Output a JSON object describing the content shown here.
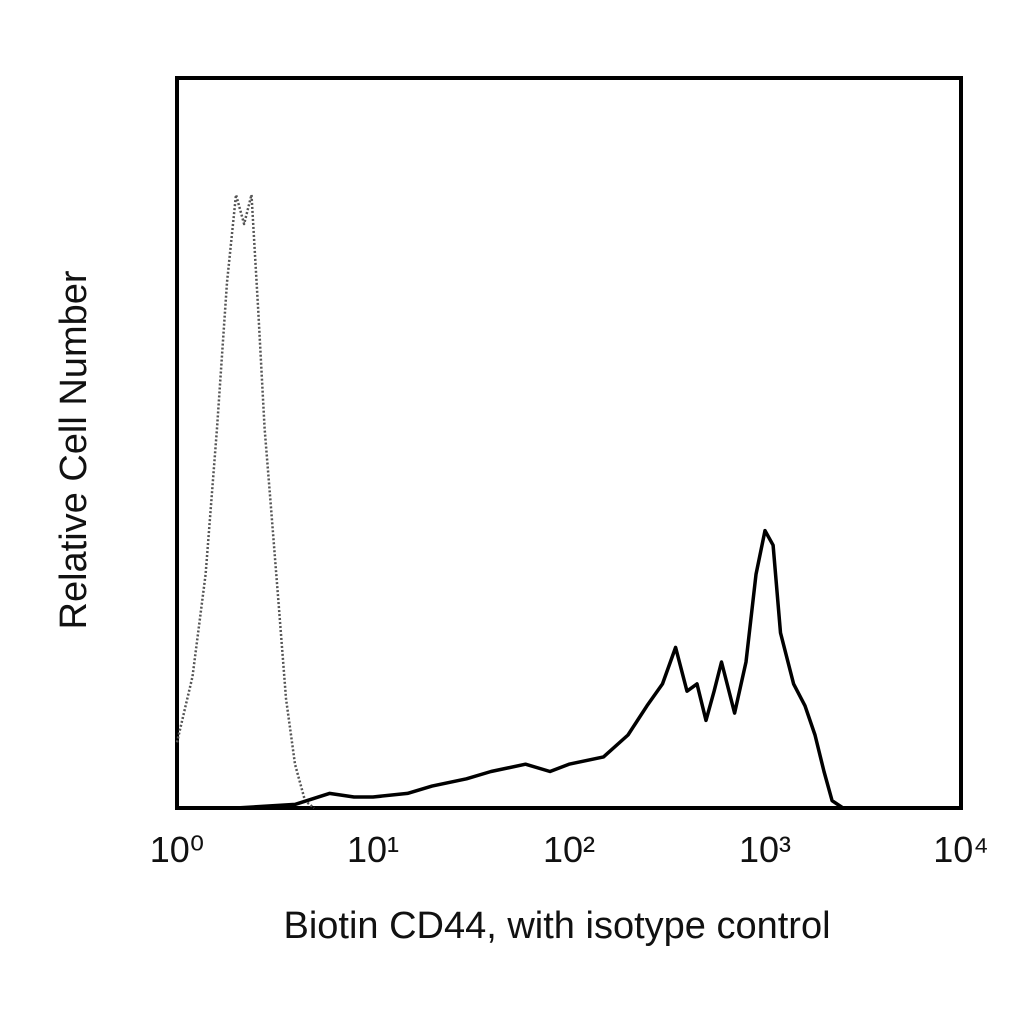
{
  "chart_data": {
    "type": "line",
    "x_label": "Biotin CD44, with isotype control",
    "y_label": "Relative Cell Number",
    "xscale": "log",
    "xlim": [
      1,
      10000
    ],
    "xticks": [
      {
        "value": 1,
        "label": "10⁰"
      },
      {
        "value": 10,
        "label": "10¹"
      },
      {
        "value": 100,
        "label": "10²"
      },
      {
        "value": 1000,
        "label": "10³"
      },
      {
        "value": 10000,
        "label": "10⁴"
      }
    ],
    "ylim": [
      0,
      100
    ],
    "grid": false,
    "series": [
      {
        "color": "#555555",
        "style": "dotted",
        "x": [
          1.0,
          1.2,
          1.4,
          1.6,
          1.8,
          2.0,
          2.2,
          2.4,
          2.6,
          2.8,
          3.0,
          3.3,
          3.6,
          4.0,
          4.5,
          5.0
        ],
        "values": [
          9,
          18,
          32,
          52,
          72,
          84,
          80,
          84,
          68,
          52,
          42,
          28,
          15,
          6,
          1,
          0
        ]
      },
      {
        "color": "#000000",
        "style": "solid",
        "x": [
          2,
          4,
          6,
          8,
          10,
          15,
          20,
          30,
          40,
          60,
          80,
          100,
          150,
          200,
          250,
          300,
          350,
          400,
          450,
          500,
          550,
          600,
          700,
          800,
          900,
          1000,
          1100,
          1200,
          1400,
          1600,
          1800,
          2000,
          2200,
          2500
        ],
        "values": [
          0,
          0.5,
          2,
          1.5,
          1.5,
          2,
          3,
          4,
          5,
          6,
          5,
          6,
          7,
          10,
          14,
          17,
          22,
          16,
          17,
          12,
          16,
          20,
          13,
          20,
          32,
          38,
          36,
          24,
          17,
          14,
          10,
          5,
          1,
          0
        ]
      }
    ]
  }
}
